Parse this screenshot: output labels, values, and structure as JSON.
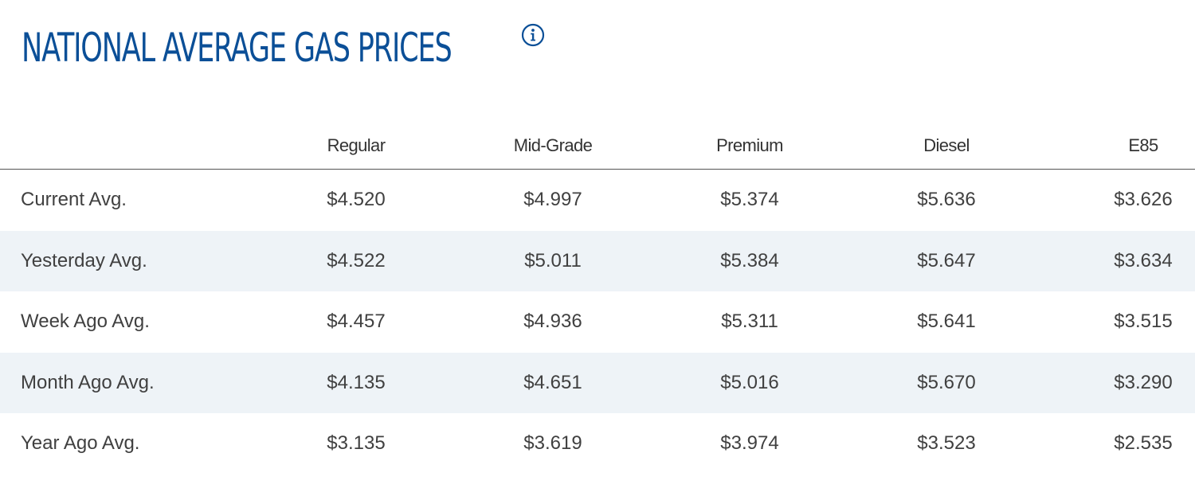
{
  "header": {
    "title": "NATIONAL AVERAGE GAS PRICES",
    "info_icon": "info-circle-icon",
    "accent_color": "#0b4f97"
  },
  "table": {
    "columns": [
      "Regular",
      "Mid-Grade",
      "Premium",
      "Diesel",
      "E85"
    ],
    "rows": [
      {
        "label": "Current Avg.",
        "values": [
          "$4.520",
          "$4.997",
          "$5.374",
          "$5.636",
          "$3.626"
        ]
      },
      {
        "label": "Yesterday Avg.",
        "values": [
          "$4.522",
          "$5.011",
          "$5.384",
          "$5.647",
          "$3.634"
        ]
      },
      {
        "label": "Week Ago Avg.",
        "values": [
          "$4.457",
          "$4.936",
          "$5.311",
          "$5.641",
          "$3.515"
        ]
      },
      {
        "label": "Month Ago Avg.",
        "values": [
          "$4.135",
          "$4.651",
          "$5.016",
          "$5.670",
          "$3.290"
        ]
      },
      {
        "label": "Year Ago Avg.",
        "values": [
          "$3.135",
          "$3.619",
          "$3.974",
          "$3.523",
          "$2.535"
        ]
      }
    ],
    "stripe_color": "#eef3f7"
  }
}
